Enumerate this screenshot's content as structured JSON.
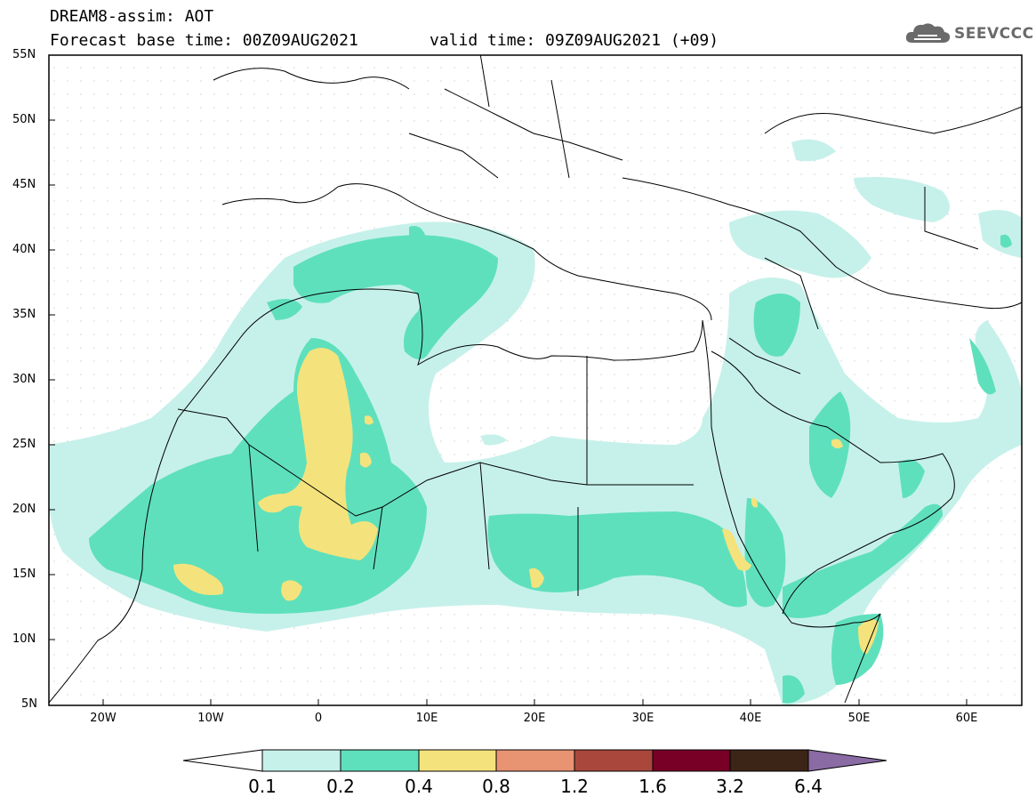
{
  "header": {
    "title_line1": "DREAM8-assim: AOT",
    "title_line2": "Forecast base time: 00Z09AUG2021",
    "valid_time": "valid time: 09Z09AUG2021 (+09)",
    "logo_text": "SEEVCCC"
  },
  "axes": {
    "lat_labels": [
      "55N",
      "50N",
      "45N",
      "40N",
      "35N",
      "30N",
      "25N",
      "20N",
      "15N",
      "10N",
      "5N"
    ],
    "lon_labels": [
      "20W",
      "10W",
      "0",
      "10E",
      "20E",
      "30E",
      "40E",
      "50E",
      "60E"
    ]
  },
  "colorbar": {
    "levels": [
      "0.1",
      "0.2",
      "0.4",
      "0.8",
      "1.2",
      "1.6",
      "3.2",
      "6.4"
    ],
    "colors": [
      "#ffffff",
      "#c6f1ea",
      "#5fe0bc",
      "#f4e37c",
      "#e89372",
      "#a9473d",
      "#780027",
      "#3c2417",
      "#8a6ba4"
    ]
  },
  "chart_data": {
    "type": "map",
    "variable": "AOT",
    "lon_range": [
      -25,
      65
    ],
    "lat_range": [
      5,
      55
    ]
  }
}
